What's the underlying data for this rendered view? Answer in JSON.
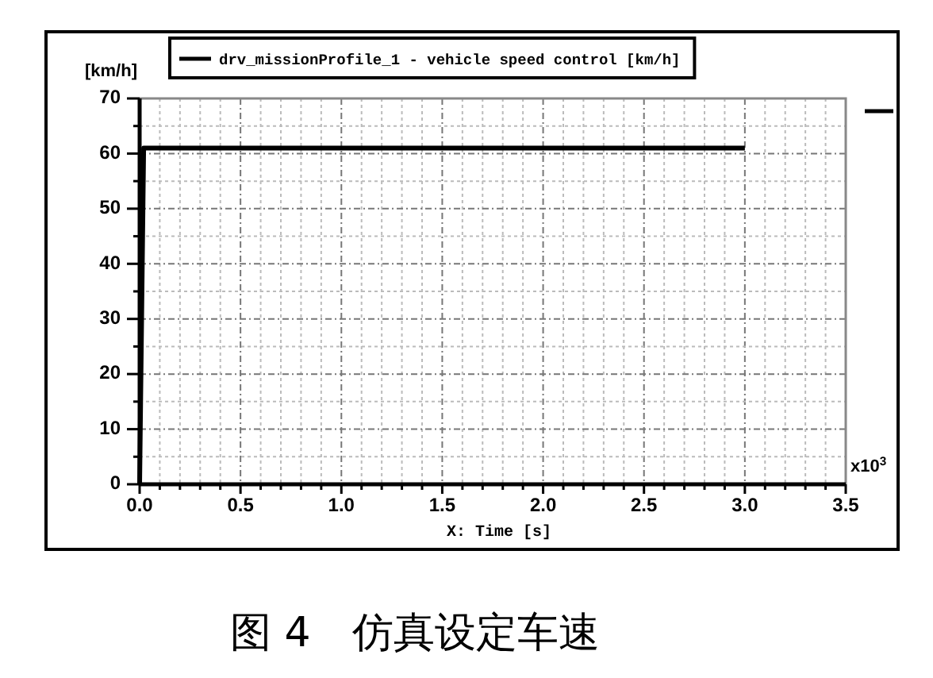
{
  "chart_data": {
    "type": "line",
    "xlabel": "X: Time [s]",
    "ylabel": "[km/h]",
    "x": [
      0,
      0.02,
      3.0
    ],
    "series": [
      {
        "name": "drv_missionProfile_1 - vehicle speed control [km/h]",
        "color": "#000000",
        "values": [
          0,
          61,
          61
        ]
      }
    ],
    "xlim": [
      0,
      3.5
    ],
    "xticks": [
      {
        "value": 0,
        "label": "0.0"
      },
      {
        "value": 0.1,
        "label": null
      },
      {
        "value": 0.2,
        "label": null
      },
      {
        "value": 0.3,
        "label": null
      },
      {
        "value": 0.4,
        "label": null
      },
      {
        "value": 0.5,
        "label": "0.5"
      },
      {
        "value": 0.6,
        "label": null
      },
      {
        "value": 0.7,
        "label": null
      },
      {
        "value": 0.8,
        "label": null
      },
      {
        "value": 0.9,
        "label": null
      },
      {
        "value": 1.0,
        "label": "1.0"
      },
      {
        "value": 1.1,
        "label": null
      },
      {
        "value": 1.2,
        "label": null
      },
      {
        "value": 1.3,
        "label": null
      },
      {
        "value": 1.4,
        "label": null
      },
      1.5,
      {
        "value": 1.6,
        "label": null
      },
      {
        "value": 1.7,
        "label": null
      },
      {
        "value": 1.8,
        "label": null
      },
      {
        "value": 1.9,
        "label": null
      },
      {
        "value": 2.0,
        "label": "2.0"
      },
      {
        "value": 2.1,
        "label": null
      },
      {
        "value": 2.2,
        "label": null
      },
      {
        "value": 2.3,
        "label": null
      },
      {
        "value": 2.4,
        "label": null
      },
      2.5,
      {
        "value": 2.6,
        "label": null
      },
      {
        "value": 2.7,
        "label": null
      },
      {
        "value": 2.8,
        "label": null
      },
      {
        "value": 2.9,
        "label": null
      },
      {
        "value": 3.0,
        "label": "3.0"
      },
      {
        "value": 3.1,
        "label": null
      },
      {
        "value": 3.2,
        "label": null
      },
      {
        "value": 3.3,
        "label": null
      },
      {
        "value": 3.4,
        "label": null
      },
      3.5
    ],
    "ylim": [
      0,
      70
    ],
    "yticks": [
      0,
      {
        "value": 5,
        "label": null
      },
      10,
      {
        "value": 15,
        "label": null
      },
      20,
      {
        "value": 25,
        "label": null
      },
      30,
      {
        "value": 35,
        "label": null
      },
      40,
      {
        "value": 45,
        "label": null
      },
      50,
      {
        "value": 55,
        "label": null
      },
      60,
      {
        "value": 65,
        "label": null
      },
      70
    ],
    "grid": true,
    "legend": "top",
    "annotations": [
      "x10$^{3}$",
      "图 4　仿真设定车速"
    ]
  }
}
